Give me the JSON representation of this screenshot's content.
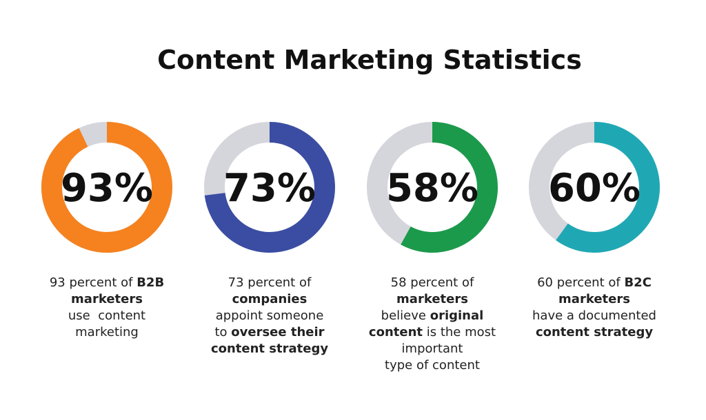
{
  "title": "Content Marketing Statistics",
  "chart_data": [
    {
      "type": "donut",
      "values": [
        93
      ],
      "value_labels": [
        "93%"
      ],
      "color": "#f5821f",
      "description": [
        [
          {
            "text": "93 percent of ",
            "bold": false
          },
          {
            "text": "B2B",
            "bold": true
          }
        ],
        [
          {
            "text": "marketers",
            "bold": true
          }
        ],
        [
          {
            "text": "use  content",
            "bold": false
          }
        ],
        [
          {
            "text": "marketing",
            "bold": false
          }
        ]
      ]
    },
    {
      "type": "donut",
      "values": [
        73
      ],
      "value_labels": [
        "73%"
      ],
      "color": "#3b4da2",
      "description": [
        [
          {
            "text": "73 percent of",
            "bold": false
          }
        ],
        [
          {
            "text": "companies",
            "bold": true
          }
        ],
        [
          {
            "text": "appoint someone",
            "bold": false
          }
        ],
        [
          {
            "text": "to ",
            "bold": false
          },
          {
            "text": "oversee their",
            "bold": true
          }
        ],
        [
          {
            "text": "content strategy",
            "bold": true
          }
        ]
      ]
    },
    {
      "type": "donut",
      "values": [
        58
      ],
      "value_labels": [
        "58%"
      ],
      "color": "#1b9a4b",
      "description": [
        [
          {
            "text": "58 percent of",
            "bold": false
          }
        ],
        [
          {
            "text": "marketers",
            "bold": true
          }
        ],
        [
          {
            "text": "believe ",
            "bold": false
          },
          {
            "text": "original",
            "bold": true
          }
        ],
        [
          {
            "text": "content",
            "bold": true
          },
          {
            "text": " is the most",
            "bold": false
          }
        ],
        [
          {
            "text": "important",
            "bold": false
          }
        ],
        [
          {
            "text": "type of content",
            "bold": false
          }
        ]
      ]
    },
    {
      "type": "donut",
      "values": [
        60
      ],
      "value_labels": [
        "60%"
      ],
      "color": "#1fa8b4",
      "description": [
        [
          {
            "text": "60 percent of ",
            "bold": false
          },
          {
            "text": "B2C",
            "bold": true
          }
        ],
        [
          {
            "text": "marketers",
            "bold": true
          }
        ],
        [
          {
            "text": "have a documented",
            "bold": false
          }
        ],
        [
          {
            "text": "content strategy",
            "bold": true
          }
        ]
      ]
    }
  ]
}
